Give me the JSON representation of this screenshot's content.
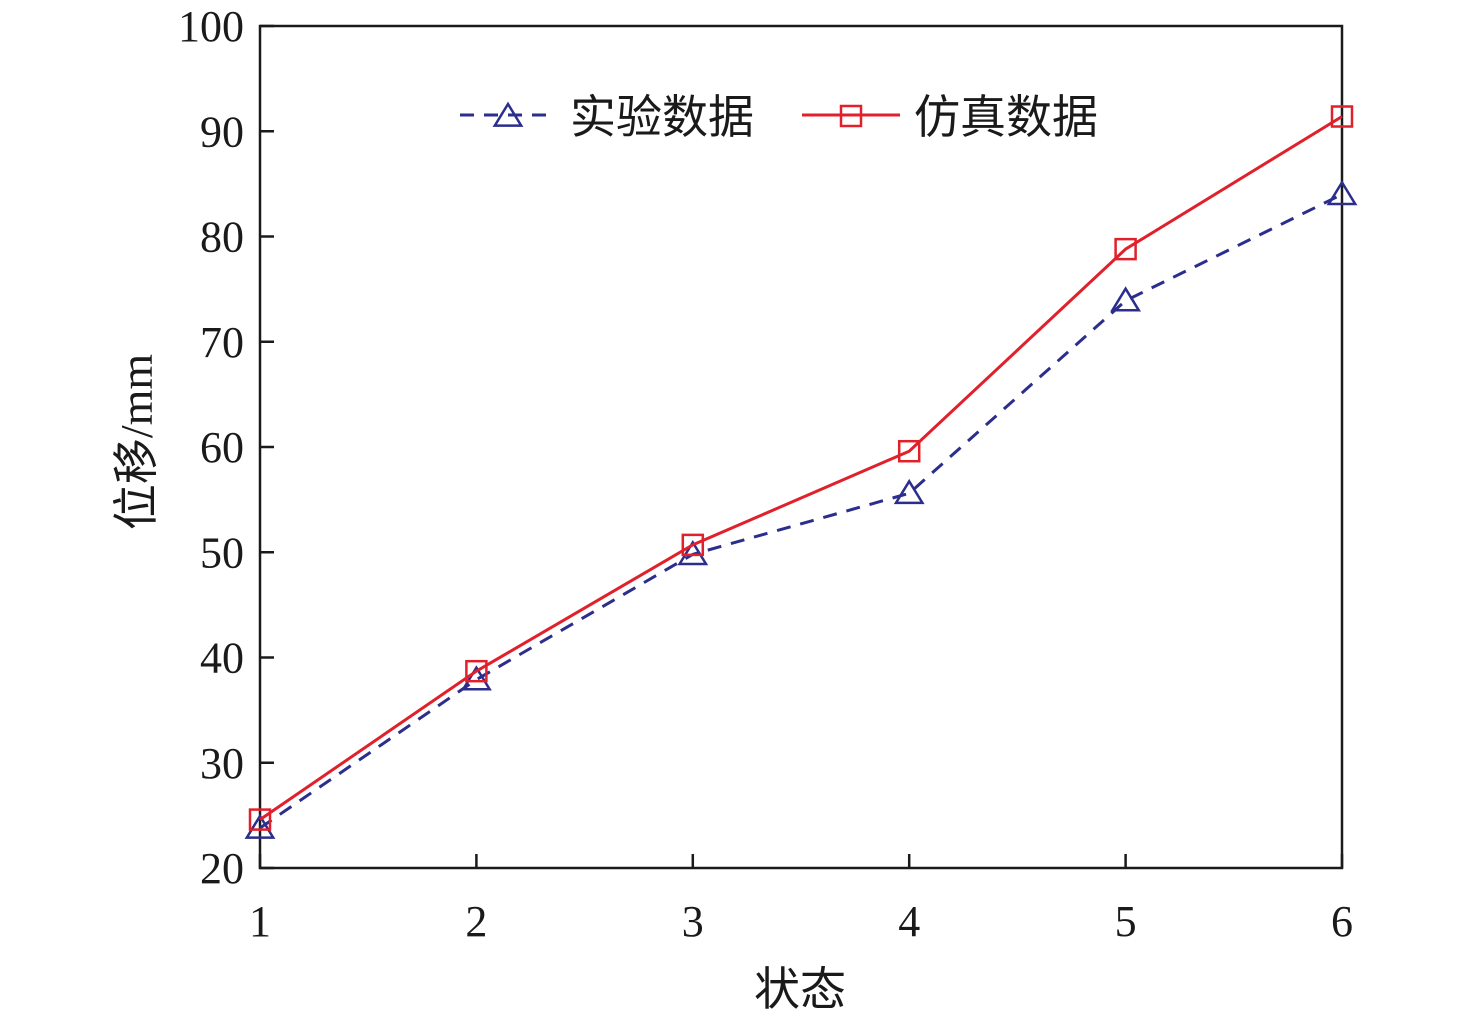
{
  "chart_data": {
    "type": "line",
    "title": "",
    "xlabel": "状态",
    "ylabel": "位移/mm",
    "x": [
      1,
      2,
      3,
      4,
      5,
      6
    ],
    "xlim": [
      1,
      6
    ],
    "ylim": [
      20,
      100
    ],
    "xticks": [
      "1",
      "2",
      "3",
      "4",
      "5",
      "6"
    ],
    "yticks": [
      "20",
      "30",
      "40",
      "50",
      "60",
      "70",
      "80",
      "90",
      "100"
    ],
    "grid": false,
    "legend_position": "top-center",
    "series": [
      {
        "name": "实验数据",
        "values": [
          23.8,
          37.9,
          49.8,
          55.6,
          73.9,
          84.0
        ],
        "color": "#2b2e8c",
        "style": "dashed",
        "marker": "triangle"
      },
      {
        "name": "仿真数据",
        "values": [
          24.6,
          38.7,
          50.7,
          59.6,
          78.8,
          91.4
        ],
        "color": "#e0202a",
        "style": "solid",
        "marker": "square"
      }
    ]
  }
}
